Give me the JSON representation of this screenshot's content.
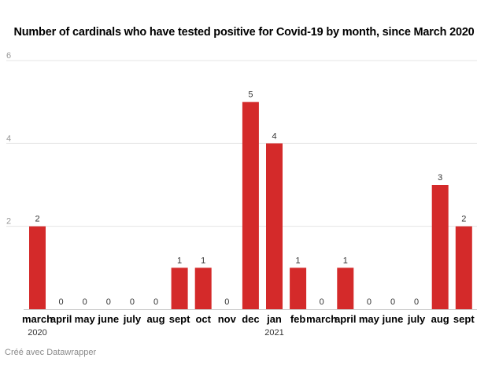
{
  "chart_data": {
    "type": "bar",
    "title": "Number of cardinals who have tested positive for Covid-19 by month, since March 2020",
    "categories": [
      "march",
      "april",
      "may",
      "june",
      "july",
      "aug",
      "sept",
      "oct",
      "nov",
      "dec",
      "jan",
      "feb",
      "march",
      "april",
      "may",
      "june",
      "july",
      "aug",
      "sept"
    ],
    "values": [
      2,
      0,
      0,
      0,
      0,
      0,
      1,
      1,
      0,
      5,
      4,
      1,
      0,
      1,
      0,
      0,
      0,
      3,
      2
    ],
    "year_labels": [
      {
        "index": 0,
        "text": "2020"
      },
      {
        "index": 10,
        "text": "2021"
      }
    ],
    "yticks": [
      2,
      4,
      6
    ],
    "ylim": [
      0,
      6
    ],
    "grid": true,
    "bar_color": "#d42a2a",
    "grid_color": "#e5e5e5"
  },
  "footer": "Créé avec Datawrapper"
}
